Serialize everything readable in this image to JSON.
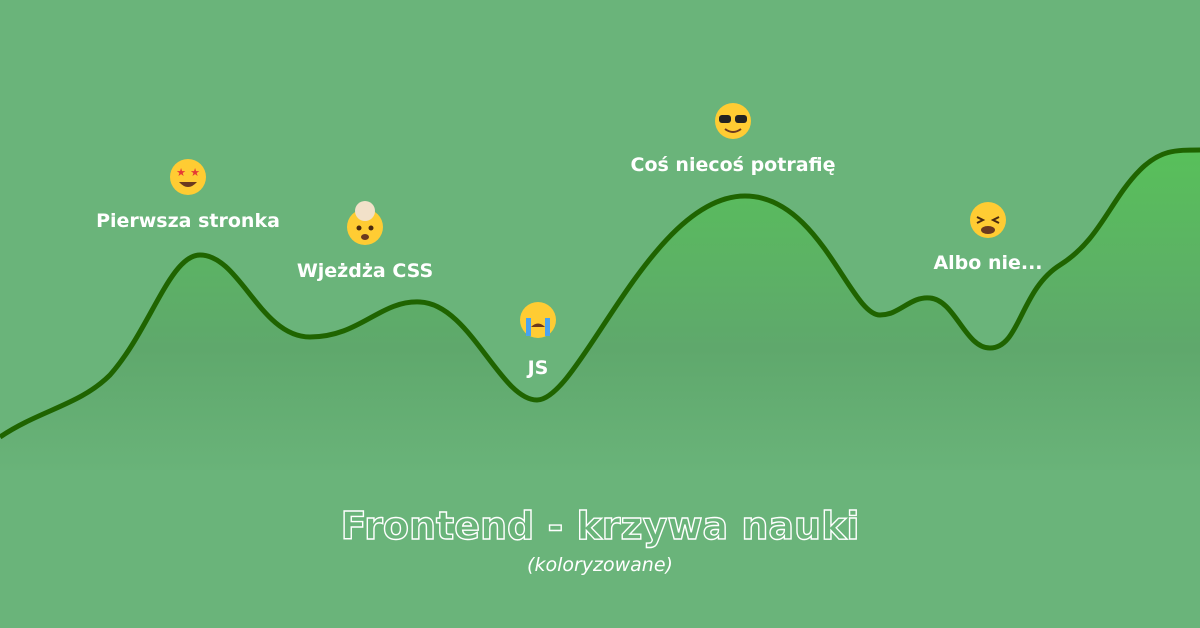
{
  "title": "Frontend - krzywa nauki",
  "subtitle": "(koloryzowane)",
  "milestones": [
    {
      "label": "Pierwsza stronka"
    },
    {
      "label": "Wjeżdża CSS"
    },
    {
      "label": "JS"
    },
    {
      "label": "Coś niecoś potrafię"
    },
    {
      "label": "Albo nie..."
    }
  ]
}
